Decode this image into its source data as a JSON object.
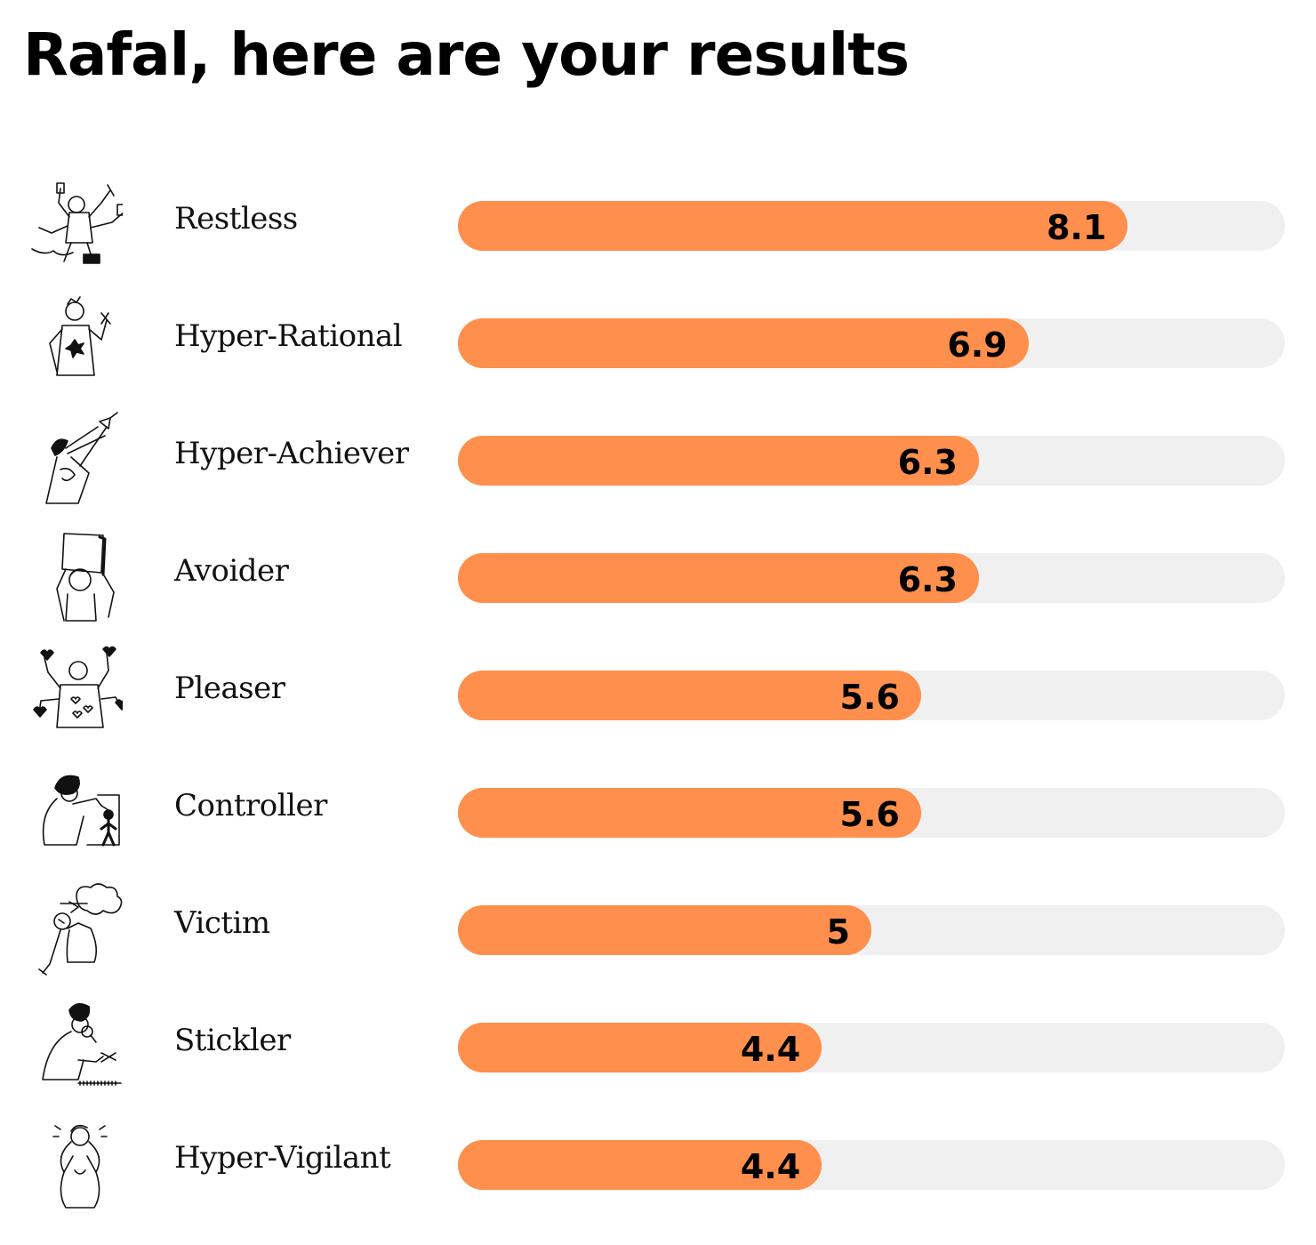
{
  "page": {
    "title": "Rafal, here are your results"
  },
  "chart_data": {
    "type": "bar",
    "orientation": "horizontal",
    "xlim": [
      0,
      10
    ],
    "categories": [
      "Restless",
      "Hyper-Rational",
      "Hyper-Achiever",
      "Avoider",
      "Pleaser",
      "Controller",
      "Victim",
      "Stickler",
      "Hyper-Vigilant"
    ],
    "values": [
      8.1,
      6.9,
      6.3,
      6.3,
      5.6,
      5.6,
      5,
      4.4,
      4.4
    ],
    "value_labels": [
      "8.1",
      "6.9",
      "6.3",
      "6.3",
      "5.6",
      "5.6",
      "5",
      "4.4",
      "4.4"
    ],
    "icons": [
      "restless-illustration-icon",
      "hyper-rational-illustration-icon",
      "hyper-achiever-illustration-icon",
      "avoider-illustration-icon",
      "pleaser-illustration-icon",
      "controller-illustration-icon",
      "victim-illustration-icon",
      "stickler-illustration-icon",
      "hyper-vigilant-illustration-icon"
    ],
    "colors": {
      "bar": "#ff8f4c",
      "track": "#f0f0f0",
      "text": "#000000"
    }
  }
}
